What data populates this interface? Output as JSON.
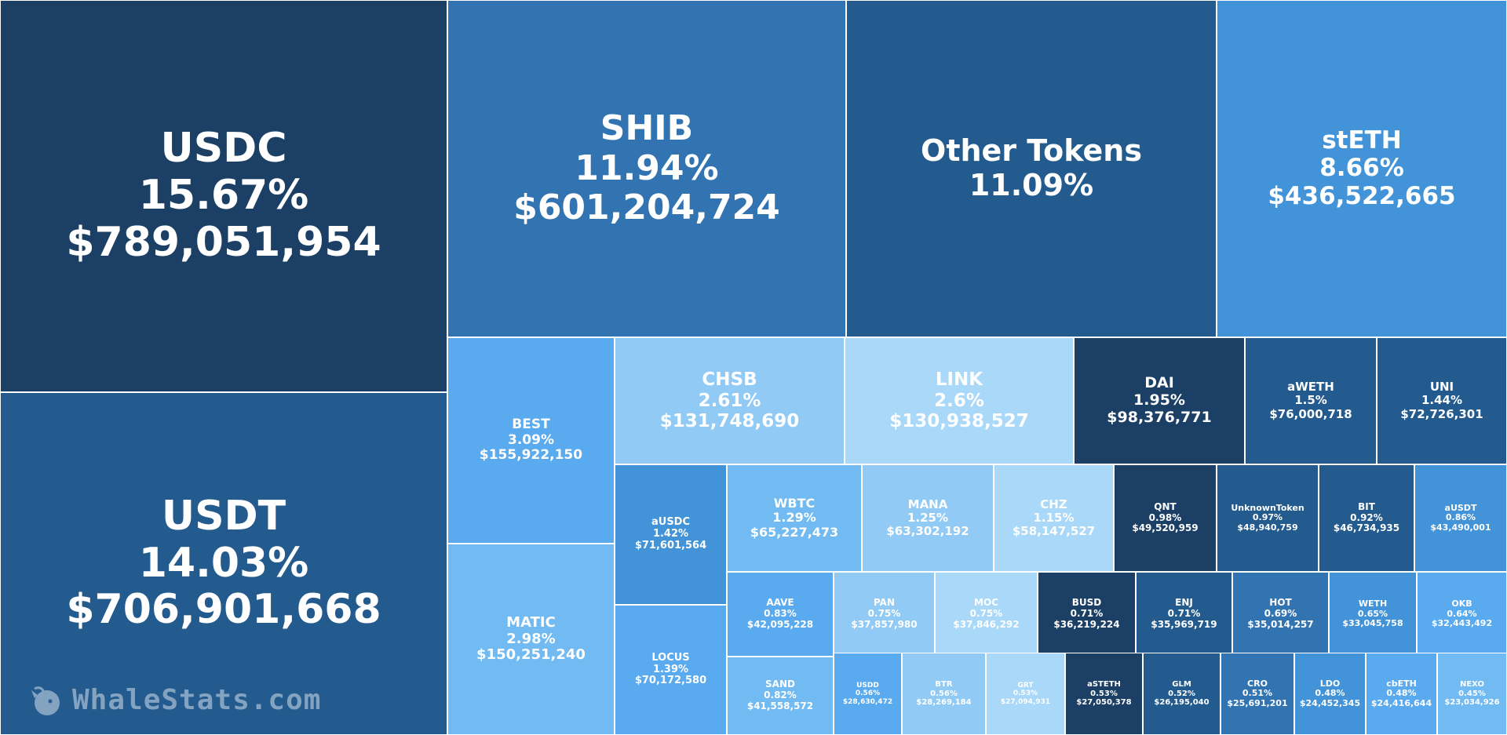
{
  "watermark": {
    "text": "WhaleStats.com",
    "icon": "whale-logo-icon"
  },
  "palette": {
    "navy": "#1b3f65",
    "darkblue": "#245b8e",
    "midblue": "#3274b2",
    "blue": "#4293d8",
    "brightblue": "#59aaee",
    "lightblue": "#71baf2",
    "paleblue": "#91cbf5",
    "palerblue": "#a9d8f8"
  },
  "chart_data": {
    "type": "treemap",
    "items": [
      {
        "name": "USDC",
        "percent": "15.67%",
        "value": "$789,051,954"
      },
      {
        "name": "USDT",
        "percent": "14.03%",
        "value": "$706,901,668"
      },
      {
        "name": "SHIB",
        "percent": "11.94%",
        "value": "$601,204,724"
      },
      {
        "name": "Other Tokens",
        "percent": "11.09%",
        "value": ""
      },
      {
        "name": "stETH",
        "percent": "8.66%",
        "value": "$436,522,665"
      },
      {
        "name": "BEST",
        "percent": "3.09%",
        "value": "$155,922,150"
      },
      {
        "name": "MATIC",
        "percent": "2.98%",
        "value": "$150,251,240"
      },
      {
        "name": "CHSB",
        "percent": "2.61%",
        "value": "$131,748,690"
      },
      {
        "name": "LINK",
        "percent": "2.6%",
        "value": "$130,938,527"
      },
      {
        "name": "DAI",
        "percent": "1.95%",
        "value": "$98,376,771"
      },
      {
        "name": "aWETH",
        "percent": "1.5%",
        "value": "$76,000,718"
      },
      {
        "name": "UNI",
        "percent": "1.44%",
        "value": "$72,726,301"
      },
      {
        "name": "aUSDC",
        "percent": "1.42%",
        "value": "$71,601,564"
      },
      {
        "name": "LOCUS",
        "percent": "1.39%",
        "value": "$70,172,580"
      },
      {
        "name": "WBTC",
        "percent": "1.29%",
        "value": "$65,227,473"
      },
      {
        "name": "MANA",
        "percent": "1.25%",
        "value": "$63,302,192"
      },
      {
        "name": "CHZ",
        "percent": "1.15%",
        "value": "$58,147,527"
      },
      {
        "name": "QNT",
        "percent": "0.98%",
        "value": "$49,520,959"
      },
      {
        "name": "UnknownToken",
        "percent": "0.97%",
        "value": "$48,940,759"
      },
      {
        "name": "BIT",
        "percent": "0.92%",
        "value": "$46,734,935"
      },
      {
        "name": "aUSDT",
        "percent": "0.86%",
        "value": "$43,490,001"
      },
      {
        "name": "AAVE",
        "percent": "0.83%",
        "value": "$42,095,228"
      },
      {
        "name": "SAND",
        "percent": "0.82%",
        "value": "$41,558,572"
      },
      {
        "name": "PAN",
        "percent": "0.75%",
        "value": "$37,857,980"
      },
      {
        "name": "MOC",
        "percent": "0.75%",
        "value": "$37,846,292"
      },
      {
        "name": "BUSD",
        "percent": "0.71%",
        "value": "$36,219,224"
      },
      {
        "name": "ENJ",
        "percent": "0.71%",
        "value": "$35,969,719"
      },
      {
        "name": "HOT",
        "percent": "0.69%",
        "value": "$35,014,257"
      },
      {
        "name": "WETH",
        "percent": "0.65%",
        "value": "$33,045,758"
      },
      {
        "name": "OKB",
        "percent": "0.64%",
        "value": "$32,443,492"
      },
      {
        "name": "USDD",
        "percent": "0.56%",
        "value": "$28,630,472"
      },
      {
        "name": "BTR",
        "percent": "0.56%",
        "value": "$28,269,184"
      },
      {
        "name": "GRT",
        "percent": "0.53%",
        "value": "$27,094,931"
      },
      {
        "name": "aSTETH",
        "percent": "0.53%",
        "value": "$27,050,378"
      },
      {
        "name": "GLM",
        "percent": "0.52%",
        "value": "$26,195,040"
      },
      {
        "name": "CRO",
        "percent": "0.51%",
        "value": "$25,691,201"
      },
      {
        "name": "LDO",
        "percent": "0.48%",
        "value": "$24,452,345"
      },
      {
        "name": "cbETH",
        "percent": "0.48%",
        "value": "$24,416,644"
      },
      {
        "name": "NEXO",
        "percent": "0.45%",
        "value": "$23,034,926"
      }
    ]
  }
}
